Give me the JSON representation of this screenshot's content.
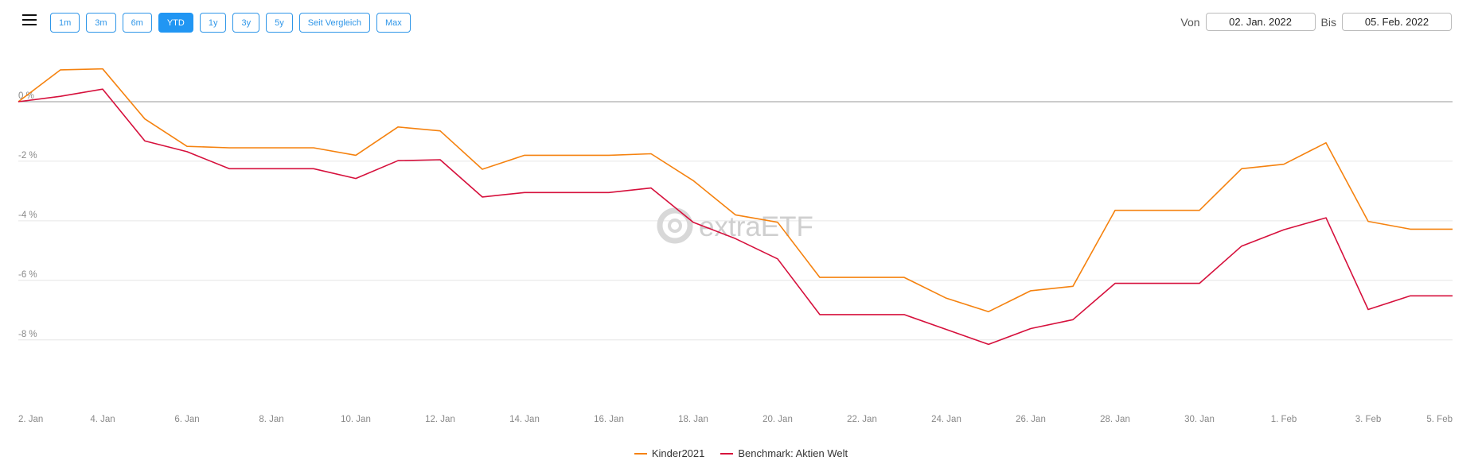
{
  "toolbar": {
    "buttons": [
      {
        "label": "1m",
        "active": false
      },
      {
        "label": "3m",
        "active": false
      },
      {
        "label": "6m",
        "active": false
      },
      {
        "label": "YTD",
        "active": true
      },
      {
        "label": "1y",
        "active": false
      },
      {
        "label": "3y",
        "active": false
      },
      {
        "label": "5y",
        "active": false
      },
      {
        "label": "Seit Vergleich",
        "active": false
      },
      {
        "label": "Max",
        "active": false
      }
    ]
  },
  "date_range": {
    "from_label": "Von",
    "from_value": "02. Jan. 2022",
    "to_label": "Bis",
    "to_value": "05. Feb. 2022"
  },
  "watermark": "extraETF",
  "colors": {
    "accent": "#2196f3",
    "series1": "#f5820f",
    "series2": "#d6103c"
  },
  "chart_data": {
    "type": "line",
    "ylim": [
      -8.3,
      1.6
    ],
    "y_ticks": [
      0,
      -2,
      -4,
      -6,
      -8
    ],
    "y_tick_labels": [
      "0 %",
      "-2 %",
      "-4 %",
      "-6 %",
      "-8 %"
    ],
    "x": [
      "2. Jan",
      "3. Jan",
      "4. Jan",
      "5. Jan",
      "6. Jan",
      "7. Jan",
      "8. Jan",
      "9. Jan",
      "10. Jan",
      "11. Jan",
      "12. Jan",
      "13. Jan",
      "14. Jan",
      "15. Jan",
      "16. Jan",
      "17. Jan",
      "18. Jan",
      "19. Jan",
      "20. Jan",
      "21. Jan",
      "22. Jan",
      "23. Jan",
      "24. Jan",
      "25. Jan",
      "26. Jan",
      "27. Jan",
      "28. Jan",
      "29. Jan",
      "30. Jan",
      "31. Jan",
      "1. Feb",
      "2. Feb",
      "3. Feb",
      "4. Feb",
      "5. Feb"
    ],
    "x_tick_labels": [
      "2. Jan",
      "4. Jan",
      "6. Jan",
      "8. Jan",
      "10. Jan",
      "12. Jan",
      "14. Jan",
      "16. Jan",
      "18. Jan",
      "20. Jan",
      "22. Jan",
      "24. Jan",
      "26. Jan",
      "28. Jan",
      "30. Jan",
      "1. Feb",
      "3. Feb",
      "5. Feb"
    ],
    "series": [
      {
        "name": "Kinder2021",
        "color": "#f5820f",
        "values": [
          0.0,
          1.07,
          1.1,
          -0.58,
          -1.5,
          -1.55,
          -1.55,
          -1.55,
          -1.8,
          -0.85,
          -0.98,
          -2.27,
          -1.8,
          -1.8,
          -1.8,
          -1.75,
          -2.65,
          -3.8,
          -4.05,
          -5.9,
          -5.9,
          -5.9,
          -6.6,
          -7.05,
          -6.35,
          -6.2,
          -3.65,
          -3.65,
          -3.65,
          -2.25,
          -2.1,
          -1.38,
          -4.02,
          -4.28,
          -4.28
        ]
      },
      {
        "name": "Benchmark: Aktien Welt",
        "color": "#d6103c",
        "values": [
          0.0,
          0.18,
          0.42,
          -1.32,
          -1.68,
          -2.25,
          -2.25,
          -2.25,
          -2.58,
          -1.98,
          -1.95,
          -3.2,
          -3.05,
          -3.05,
          -3.05,
          -2.9,
          -4.05,
          -4.6,
          -5.28,
          -7.15,
          -7.15,
          -7.15,
          -7.65,
          -8.15,
          -7.62,
          -7.32,
          -6.1,
          -6.1,
          -6.1,
          -4.85,
          -4.3,
          -3.9,
          -6.98,
          -6.52,
          -6.52
        ]
      }
    ]
  }
}
